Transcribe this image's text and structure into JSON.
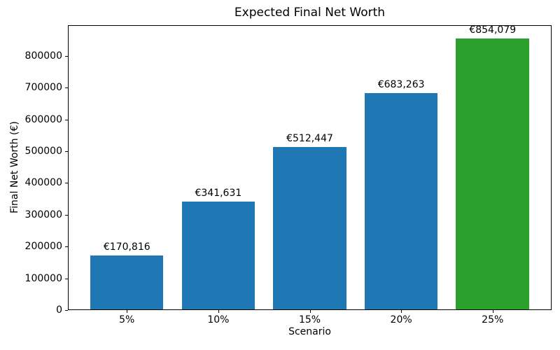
{
  "chart_data": {
    "type": "bar",
    "title": "Expected Final Net Worth",
    "xlabel": "Scenario",
    "ylabel": "Final Net Worth (€)",
    "categories": [
      "5%",
      "10%",
      "15%",
      "20%",
      "25%"
    ],
    "values": [
      170816,
      341631,
      512447,
      683263,
      854079
    ],
    "bar_labels": [
      "€170,816",
      "€341,631",
      "€512,447",
      "€683,263",
      "€854,079"
    ],
    "bar_colors": [
      "#1f77b4",
      "#1f77b4",
      "#1f77b4",
      "#1f77b4",
      "#2ca02c"
    ],
    "yticks": [
      0,
      100000,
      200000,
      300000,
      400000,
      500000,
      600000,
      700000,
      800000
    ],
    "ylim": [
      0,
      896783
    ],
    "xlim": [
      -0.645,
      4.645
    ],
    "bar_width": 0.8,
    "grid": false,
    "legend": null
  },
  "colors": {
    "background": "#ffffff",
    "spine": "#000000",
    "text": "#000000",
    "bar_blue": "#1f77b4",
    "bar_green": "#2ca02c"
  }
}
